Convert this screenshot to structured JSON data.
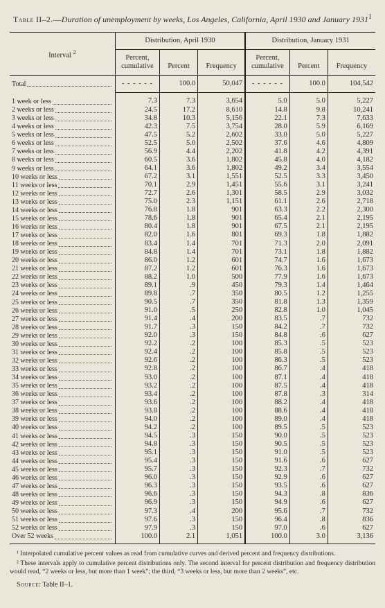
{
  "title_prefix": "Table II–2.—",
  "title_main": "Duration of unemployment by weeks, Los Angeles, California, April 1930 and January 1931",
  "title_sup": "1",
  "headers": {
    "interval": "Interval",
    "interval_sup": "2",
    "dist_a": "Distribution, April 1930",
    "dist_b": "Distribution, January 1931",
    "pct_cum": "Percent, cumulative",
    "pct": "Percent",
    "freq": "Frequency"
  },
  "total_label": "Total",
  "total": {
    "a_cum": "",
    "a_pct": "100.0",
    "a_freq": "50,047",
    "b_cum": "",
    "b_pct": "100.0",
    "b_freq": "104,542"
  },
  "rows": [
    {
      "l": "1 week or less",
      "ac": "7.3",
      "ap": "7.3",
      "af": "3,654",
      "bc": "5.0",
      "bp": "5.0",
      "bf": "5,227"
    },
    {
      "l": "2 weeks or less",
      "ac": "24.5",
      "ap": "17.2",
      "af": "8,610",
      "bc": "14.8",
      "bp": "9.8",
      "bf": "10,241"
    },
    {
      "l": "3 weeks or less",
      "ac": "34.8",
      "ap": "10.3",
      "af": "5,156",
      "bc": "22.1",
      "bp": "7.3",
      "bf": "7,633"
    },
    {
      "l": "4 weeks or less",
      "ac": "42.3",
      "ap": "7.5",
      "af": "3,754",
      "bc": "28.0",
      "bp": "5.9",
      "bf": "6,169"
    },
    {
      "l": "5 weeks or less",
      "ac": "47.5",
      "ap": "5.2",
      "af": "2,602",
      "bc": "33.0",
      "bp": "5.0",
      "bf": "5,227"
    },
    {
      "l": "6 weeks or less",
      "ac": "52.5",
      "ap": "5.0",
      "af": "2,502",
      "bc": "37.6",
      "bp": "4.6",
      "bf": "4,809"
    },
    {
      "l": "7 weeks or less",
      "ac": "56.9",
      "ap": "4.4",
      "af": "2,202",
      "bc": "41.8",
      "bp": "4.2",
      "bf": "4,391"
    },
    {
      "l": "8 weeks or less",
      "ac": "60.5",
      "ap": "3.6",
      "af": "1,802",
      "bc": "45.8",
      "bp": "4.0",
      "bf": "4,182"
    },
    {
      "l": "9 weeks or less",
      "ac": "64.1",
      "ap": "3.6",
      "af": "1,802",
      "bc": "49.2",
      "bp": "3.4",
      "bf": "3,554"
    },
    {
      "l": "10 weeks or less",
      "ac": "67.2",
      "ap": "3.1",
      "af": "1,551",
      "bc": "52.5",
      "bp": "3.3",
      "bf": "3,450"
    },
    {
      "l": "11 weeks or less",
      "ac": "70.1",
      "ap": "2.9",
      "af": "1,451",
      "bc": "55.6",
      "bp": "3.1",
      "bf": "3,241"
    },
    {
      "l": "12 weeks or less",
      "ac": "72.7",
      "ap": "2.6",
      "af": "1,301",
      "bc": "58.5",
      "bp": "2.9",
      "bf": "3,032"
    },
    {
      "l": "13 weeks or less",
      "ac": "75.0",
      "ap": "2.3",
      "af": "1,151",
      "bc": "61.1",
      "bp": "2.6",
      "bf": "2,718"
    },
    {
      "l": "14 weeks or less",
      "ac": "76.8",
      "ap": "1.8",
      "af": "901",
      "bc": "63.3",
      "bp": "2.2",
      "bf": "2,300"
    },
    {
      "l": "15 weeks or less",
      "ac": "78.6",
      "ap": "1.8",
      "af": "901",
      "bc": "65.4",
      "bp": "2.1",
      "bf": "2,195"
    },
    {
      "l": "16 weeks or less",
      "ac": "80.4",
      "ap": "1.8",
      "af": "901",
      "bc": "67.5",
      "bp": "2.1",
      "bf": "2,195"
    },
    {
      "l": "17 weeks or less",
      "ac": "82.0",
      "ap": "1.6",
      "af": "801",
      "bc": "69.3",
      "bp": "1.8",
      "bf": "1,882"
    },
    {
      "l": "18 weeks or less",
      "ac": "83.4",
      "ap": "1.4",
      "af": "701",
      "bc": "71.3",
      "bp": "2.0",
      "bf": "2,091"
    },
    {
      "l": "19 weeks or less",
      "ac": "84.8",
      "ap": "1.4",
      "af": "701",
      "bc": "73.1",
      "bp": "1.8",
      "bf": "1,882"
    },
    {
      "l": "20 weeks or less",
      "ac": "86.0",
      "ap": "1.2",
      "af": "601",
      "bc": "74.7",
      "bp": "1.6",
      "bf": "1,673"
    },
    {
      "l": "21 weeks or less",
      "ac": "87.2",
      "ap": "1.2",
      "af": "601",
      "bc": "76.3",
      "bp": "1.6",
      "bf": "1,673"
    },
    {
      "l": "22 weeks or less",
      "ac": "88.2",
      "ap": "1.0",
      "af": "500",
      "bc": "77.9",
      "bp": "1.6",
      "bf": "1,673"
    },
    {
      "l": "23 weeks or less",
      "ac": "89.1",
      "ap": ".9",
      "af": "450",
      "bc": "79.3",
      "bp": "1.4",
      "bf": "1,464"
    },
    {
      "l": "24 weeks or less",
      "ac": "89.8",
      "ap": ".7",
      "af": "350",
      "bc": "80.5",
      "bp": "1.2",
      "bf": "1,255"
    },
    {
      "l": "25 weeks or less",
      "ac": "90.5",
      "ap": ".7",
      "af": "350",
      "bc": "81.8",
      "bp": "1.3",
      "bf": "1,359"
    },
    {
      "l": "26 weeks or less",
      "ac": "91.0",
      "ap": ".5",
      "af": "250",
      "bc": "82.8",
      "bp": "1.0",
      "bf": "1,045"
    },
    {
      "l": "27 weeks or less",
      "ac": "91.4",
      "ap": ".4",
      "af": "200",
      "bc": "83.5",
      "bp": ".7",
      "bf": "732"
    },
    {
      "l": "28 weeks or less",
      "ac": "91.7",
      "ap": ".3",
      "af": "150",
      "bc": "84.2",
      "bp": ".7",
      "bf": "732"
    },
    {
      "l": "29 weeks or less",
      "ac": "92.0",
      "ap": ".3",
      "af": "150",
      "bc": "84.8",
      "bp": ".6",
      "bf": "627"
    },
    {
      "l": "30 weeks or less",
      "ac": "92.2",
      "ap": ".2",
      "af": "100",
      "bc": "85.3",
      "bp": ".5",
      "bf": "523"
    },
    {
      "l": "31 weeks or less",
      "ac": "92.4",
      "ap": ".2",
      "af": "100",
      "bc": "85.8",
      "bp": ".5",
      "bf": "523"
    },
    {
      "l": "32 weeks or less",
      "ac": "92.6",
      "ap": ".2",
      "af": "100",
      "bc": "86.3",
      "bp": ".5",
      "bf": "523"
    },
    {
      "l": "33 weeks or less",
      "ac": "92.8",
      "ap": ".2",
      "af": "100",
      "bc": "86.7",
      "bp": ".4",
      "bf": "418"
    },
    {
      "l": "34 weeks or less",
      "ac": "93.0",
      "ap": ".2",
      "af": "100",
      "bc": "87.1",
      "bp": ".4",
      "bf": "418"
    },
    {
      "l": "35 weeks or less",
      "ac": "93.2",
      "ap": ".2",
      "af": "100",
      "bc": "87.5",
      "bp": ".4",
      "bf": "418"
    },
    {
      "l": "36 weeks or less",
      "ac": "93.4",
      "ap": ".2",
      "af": "100",
      "bc": "87.8",
      "bp": ".3",
      "bf": "314"
    },
    {
      "l": "37 weeks or less",
      "ac": "93.6",
      "ap": ".2",
      "af": "100",
      "bc": "88.2",
      "bp": ".4",
      "bf": "418"
    },
    {
      "l": "38 weeks or less",
      "ac": "93.8",
      "ap": ".2",
      "af": "100",
      "bc": "88.6",
      "bp": ".4",
      "bf": "418"
    },
    {
      "l": "39 weeks or less",
      "ac": "94.0",
      "ap": ".2",
      "af": "100",
      "bc": "89.0",
      "bp": ".4",
      "bf": "418"
    },
    {
      "l": "40 weeks or less",
      "ac": "94.2",
      "ap": ".2",
      "af": "100",
      "bc": "89.5",
      "bp": ".5",
      "bf": "523"
    },
    {
      "l": "41 weeks or less",
      "ac": "94.5",
      "ap": ".3",
      "af": "150",
      "bc": "90.0",
      "bp": ".5",
      "bf": "523"
    },
    {
      "l": "42 weeks or less",
      "ac": "94.8",
      "ap": ".3",
      "af": "150",
      "bc": "90.5",
      "bp": ".5",
      "bf": "523"
    },
    {
      "l": "43 weeks or less",
      "ac": "95.1",
      "ap": ".3",
      "af": "150",
      "bc": "91.0",
      "bp": ".5",
      "bf": "523"
    },
    {
      "l": "44 weeks or less",
      "ac": "95.4",
      "ap": ".3",
      "af": "150",
      "bc": "91.6",
      "bp": ".6",
      "bf": "627"
    },
    {
      "l": "45 weeks or less",
      "ac": "95.7",
      "ap": ".3",
      "af": "150",
      "bc": "92.3",
      "bp": ".7",
      "bf": "732"
    },
    {
      "l": "46 weeks or less",
      "ac": "96.0",
      "ap": ".3",
      "af": "150",
      "bc": "92.9",
      "bp": ".6",
      "bf": "627"
    },
    {
      "l": "47 weeks or less",
      "ac": "96.3",
      "ap": ".3",
      "af": "150",
      "bc": "93.5",
      "bp": ".6",
      "bf": "627"
    },
    {
      "l": "48 weeks or less",
      "ac": "96.6",
      "ap": ".3",
      "af": "150",
      "bc": "94.3",
      "bp": ".8",
      "bf": "836"
    },
    {
      "l": "49 weeks or less",
      "ac": "96.9",
      "ap": ".3",
      "af": "150",
      "bc": "94.9",
      "bp": ".6",
      "bf": "627"
    },
    {
      "l": "50 weeks or less",
      "ac": "97.3",
      "ap": ".4",
      "af": "200",
      "bc": "95.6",
      "bp": ".7",
      "bf": "732"
    },
    {
      "l": "51 weeks or less",
      "ac": "97.6",
      "ap": ".3",
      "af": "150",
      "bc": "96.4",
      "bp": ".8",
      "bf": "836"
    },
    {
      "l": "52 weeks or less",
      "ac": "97.9",
      "ap": ".3",
      "af": "150",
      "bc": "97.0",
      "bp": ".6",
      "bf": "627"
    },
    {
      "l": "Over 52 weeks",
      "ac": "100.0",
      "ap": "2.1",
      "af": "1,051",
      "bc": "100.0",
      "bp": "3.0",
      "bf": "3,136"
    }
  ],
  "footnote1": "¹ Interpolated cumulative percent values as read from cumulative curves and derived percent and frequency distributions.",
  "footnote2": "² These intervals apply to cumulative percent distributions only. The second interval for percent distribution and frequency distribution would read, “2 weeks or less, but more than 1 week”; the third, “3 weeks or less, but more than 2 weeks”, etc.",
  "source_label": "Source",
  "source_text": ": Table II–1.",
  "col_widths": [
    "138",
    "58",
    "50",
    "62",
    "58",
    "50",
    "62"
  ],
  "dash": "- - - - - -"
}
